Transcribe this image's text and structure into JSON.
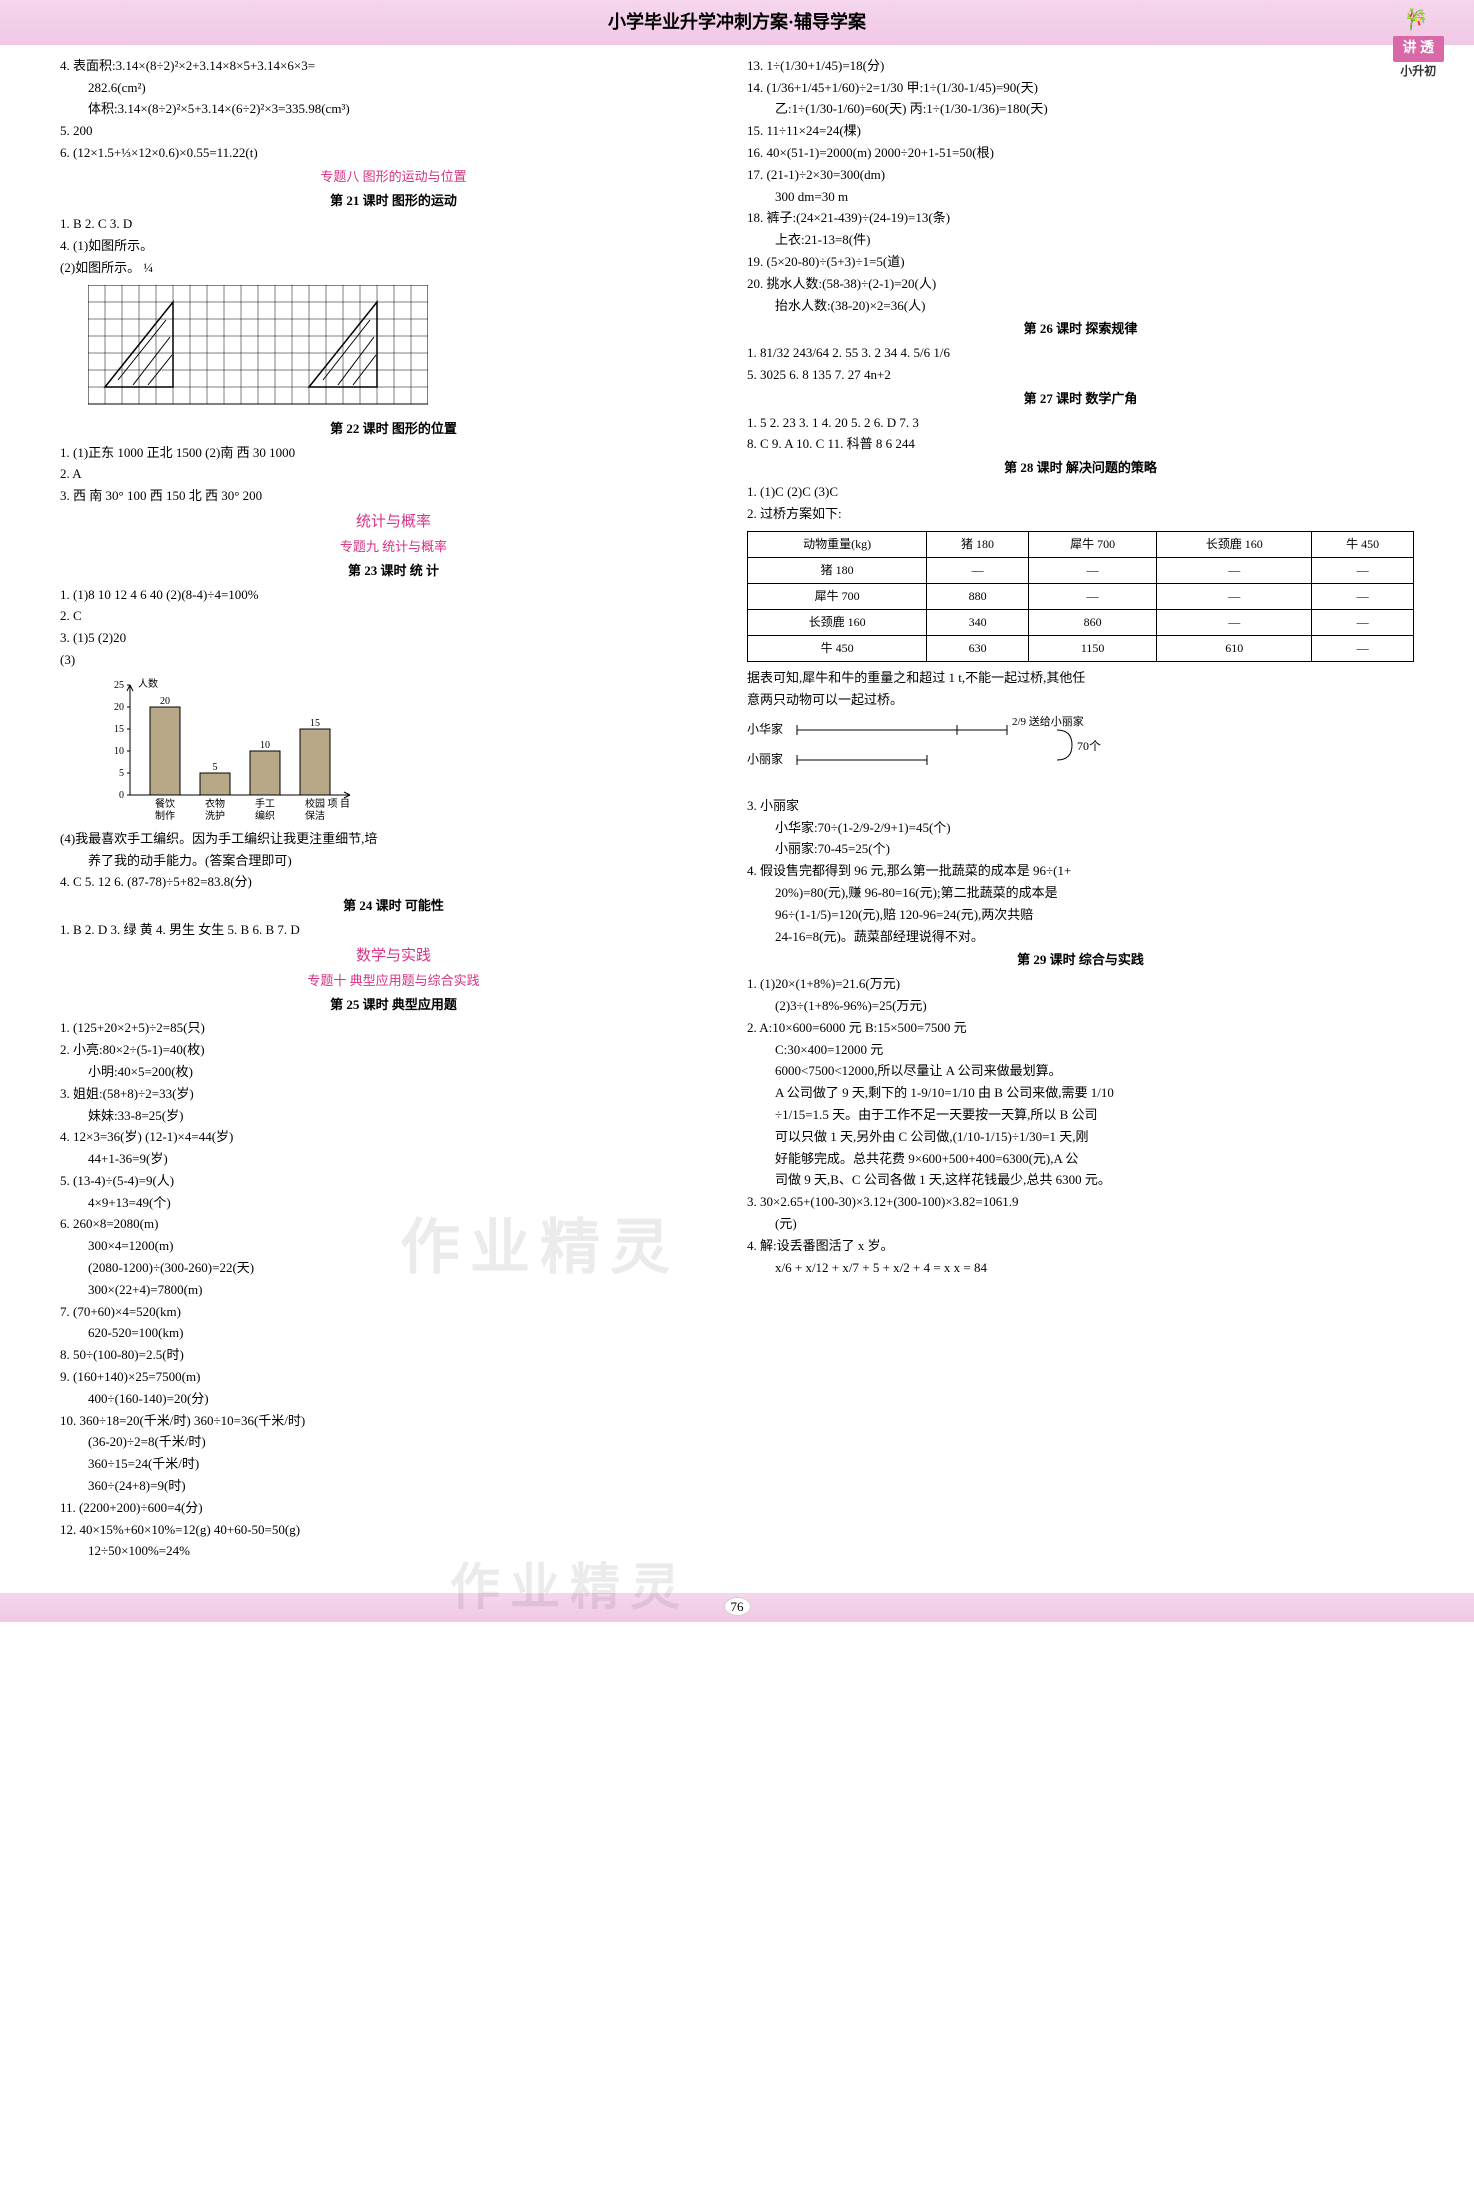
{
  "header": {
    "title": "小学毕业升学冲刺方案·辅导学案",
    "badge": "讲 透",
    "badge_sub": "小升初"
  },
  "left_col": {
    "items_top": [
      "4.  表面积:3.14×(8÷2)²×2+3.14×8×5+3.14×6×3=",
      "    282.6(cm²)",
      "    体积:3.14×(8÷2)²×5+3.14×(6÷2)²×3=335.98(cm³)",
      "5.  200",
      "6.  (12×1.5+⅓×12×0.6)×0.55=11.22(t)"
    ],
    "section8_pink": "专题八  图形的运动与位置",
    "lesson21": "第 21 课时  图形的运动",
    "l21_lines": [
      "1. B  2. C  3. D",
      "4.  (1)如图所示。",
      "    (2)如图所示。  ¼"
    ],
    "lesson22": "第 22 课时  图形的位置",
    "l22_lines": [
      "1.  (1)正东  1000  正北  1500  (2)南  西  30  1000",
      "2. A",
      "3.  西  南  30°  100  西  150  北  西  30°  200"
    ],
    "stats_pink_main": "统计与概率",
    "stats_pink_sub": "专题九  统计与概率",
    "lesson23": "第 23 课时  统  计",
    "l23_lines": [
      "1.  (1)8  10  12  4  6  40  (2)(8-4)÷4=100%",
      "2. C",
      "3.  (1)5  (2)20",
      "    (3)"
    ],
    "chart23": {
      "type": "bar",
      "y_label": "人数",
      "x_categories": [
        "餐饮制作",
        "衣物洗护",
        "手工编织",
        "校园保洁",
        "项目"
      ],
      "y_ticks": [
        0,
        5,
        10,
        15,
        20,
        25
      ],
      "values": [
        20,
        5,
        10,
        15
      ],
      "bar_color": "#b8a888",
      "label_fontsize": 10
    },
    "l23_after": [
      "    (4)我最喜欢手工编织。因为手工编织让我更注重细节,培",
      "    养了我的动手能力。(答案合理即可)",
      "4. C  5. 12  6.  (87-78)÷5+82=83.8(分)"
    ],
    "lesson24": "第 24 课时  可能性",
    "l24_lines": [
      "1. B  2. D  3. 绿  黄  4. 男生  女生  5. B  6. B  7. D"
    ],
    "math_practice_main": "数学与实践",
    "math_practice_sub": "专题十  典型应用题与综合实践",
    "lesson25": "第 25 课时  典型应用题",
    "l25_lines": [
      "1.  (125+20×2+5)÷2=85(只)",
      "2.  小亮:80×2÷(5-1)=40(枚)",
      "    小明:40×5=200(枚)",
      "3.  姐姐:(58+8)÷2=33(岁)",
      "    妹妹:33-8=25(岁)",
      "4.  12×3=36(岁)  (12-1)×4=44(岁)",
      "    44+1-36=9(岁)",
      "5.  (13-4)÷(5-4)=9(人)",
      "    4×9+13=49(个)",
      "6.  260×8=2080(m)",
      "    300×4=1200(m)",
      "    (2080-1200)÷(300-260)=22(天)",
      "    300×(22+4)=7800(m)",
      "7.  (70+60)×4=520(km)",
      "    620-520=100(km)",
      "8.  50÷(100-80)=2.5(时)",
      "9.  (160+140)×25=7500(m)",
      "    400÷(160-140)=20(分)",
      "10.  360÷18=20(千米/时)    360÷10=36(千米/时)",
      "     (36-20)÷2=8(千米/时)",
      "     360÷15=24(千米/时)",
      "     360÷(24+8)=9(时)",
      "11.  (2200+200)÷600=4(分)",
      "12.  40×15%+60×10%=12(g)  40+60-50=50(g)",
      "     12÷50×100%=24%"
    ]
  },
  "right_col": {
    "lines_top": [
      "13.  1÷(1/30+1/45)=18(分)",
      "14.  (1/36+1/45+1/60)÷2=1/30    甲:1÷(1/30-1/45)=90(天)",
      "     乙:1÷(1/30-1/60)=60(天)   丙:1÷(1/30-1/36)=180(天)",
      "15.  11÷11×24=24(棵)",
      "16.  40×(51-1)=2000(m)  2000÷20+1-51=50(根)",
      "17.  (21-1)÷2×30=300(dm)",
      "     300 dm=30 m",
      "18.  裤子:(24×21-439)÷(24-19)=13(条)",
      "     上衣:21-13=8(件)",
      "19.  (5×20-80)÷(5+3)÷1=5(道)",
      "20.  挑水人数:(58-38)÷(2-1)=20(人)",
      "     抬水人数:(38-20)×2=36(人)"
    ],
    "lesson26": "第 26 课时  探索规律",
    "l26_lines": [
      "1. 81/32  243/64  2. 55  3. 2  34  4. 5/6  1/6",
      "5. 3025  6. 8  135  7. 27  4n+2"
    ],
    "lesson27": "第 27 课时  数学广角",
    "l27_lines": [
      "1. 5  2. 23  3. 1  4. 20  5. 2  6. D  7. 3",
      "8. C  9. A  10. C  11. 科普  8  6  244"
    ],
    "lesson28": "第 28 课时  解决问题的策略",
    "l28_lines": [
      "1.  (1)C  (2)C  (3)C",
      "2.  过桥方案如下:"
    ],
    "table28": {
      "headers": [
        "动物重量(kg)",
        "猪 180",
        "犀牛 700",
        "长颈鹿 160",
        "牛 450"
      ],
      "rows": [
        [
          "猪 180",
          "—",
          "—",
          "—",
          "—"
        ],
        [
          "犀牛 700",
          "880",
          "—",
          "—",
          "—"
        ],
        [
          "长颈鹿 160",
          "340",
          "860",
          "—",
          "—"
        ],
        [
          "牛 450",
          "630",
          "1150",
          "610",
          "—"
        ]
      ]
    },
    "l28_after": [
      "据表可知,犀牛和牛的重量之和超过 1 t,不能一起过桥,其他任",
      "意两只动物可以一起过桥。"
    ],
    "diagram3": {
      "label1": "小华家",
      "label2": "小丽家",
      "frac": "2/9 送给小丽家",
      "count": "70个"
    },
    "l28_3": [
      "3.  小丽家",
      "    小华家:70÷(1-2/9-2/9+1)=45(个)",
      "    小丽家:70-45=25(个)",
      "4.  假设售完都得到 96 元,那么第一批蔬菜的成本是 96÷(1+",
      "    20%)=80(元),赚 96-80=16(元);第二批蔬菜的成本是",
      "    96÷(1-1/5)=120(元),赔 120-96=24(元),两次共赔",
      "    24-16=8(元)。蔬菜部经理说得不对。"
    ],
    "lesson29": "第 29 课时  综合与实践",
    "l29_lines": [
      "1.  (1)20×(1+8%)=21.6(万元)",
      "    (2)3÷(1+8%-96%)=25(万元)",
      "2.  A:10×600=6000 元  B:15×500=7500 元",
      "    C:30×400=12000 元",
      "    6000<7500<12000,所以尽量让 A 公司来做最划算。",
      "    A 公司做了 9 天,剩下的 1-9/10=1/10 由 B 公司来做,需要 1/10",
      "    ÷1/15=1.5 天。由于工作不足一天要按一天算,所以 B 公司",
      "    可以只做 1 天,另外由 C 公司做,(1/10-1/15)÷1/30=1 天,刚",
      "    好能够完成。总共花费 9×600+500+400=6300(元),A 公",
      "    司做 9 天,B、C 公司各做 1 天,这样花钱最少,总共 6300 元。",
      "3.  30×2.65+(100-30)×3.12+(300-100)×3.82=1061.9",
      "    (元)",
      "4.  解:设丢番图活了 x 岁。",
      "    x/6 + x/12 + x/7 + 5 + x/2 + 4 = x    x = 84"
    ]
  },
  "page_number": "76",
  "watermark": "作业精灵"
}
